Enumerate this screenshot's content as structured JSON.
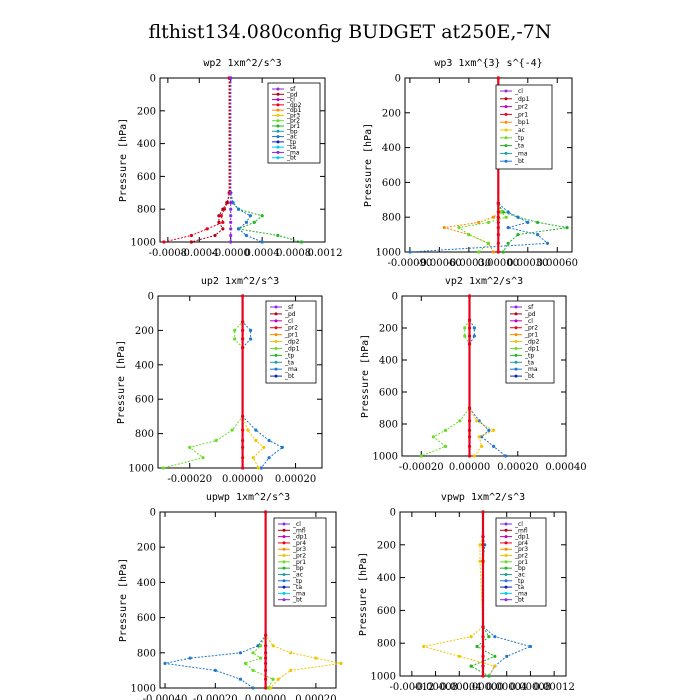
{
  "figure": {
    "title": "flthist134.080config  BUDGET at250E,-7N"
  },
  "colors": {
    "red": "#e8001c",
    "darkred": "#b40014",
    "magenta": "#c000c0",
    "purple": "#8a2be2",
    "orange": "#ff8c00",
    "yellow": "#f5c400",
    "green": "#22b422",
    "lime": "#66dd22",
    "blue": "#1f77d0",
    "navy": "#1020c0",
    "teal": "#20a0a0",
    "cyan": "#00ccee"
  },
  "chart_data": [
    {
      "type": "line",
      "title": "wp2   1xm^2/s^3",
      "ylabel": "Pressure [hPa]",
      "xlim": [
        -0.0009,
        0.0012
      ],
      "ylim": [
        1000,
        0
      ],
      "xticks": [
        "-0.0008",
        "-0.0004",
        "-0.0000",
        "0.0004",
        "0.0008",
        "0.0012"
      ],
      "xtick_values": [
        -0.0008,
        -0.0004,
        0.0,
        0.0004,
        0.0008,
        0.0012
      ],
      "yticks": [
        0,
        200,
        400,
        600,
        800,
        1000
      ],
      "legend": [
        "_sf",
        "_pd",
        "_cl",
        "_dp2",
        "_dp1",
        "_pr3",
        "_pr2",
        "_pr1",
        "_bp",
        "_ac",
        "_tp",
        "_ta",
        "_ma",
        "_bt"
      ],
      "series": [
        {
          "name": "_dp1",
          "color": "red",
          "x": [
            -2e-05,
            -2e-05,
            -4e-05,
            -8e-05,
            -0.00012,
            -0.0001,
            -0.0003,
            -0.0005,
            -0.00085
          ],
          "y": [
            0,
            700,
            760,
            800,
            840,
            880,
            920,
            960,
            1000
          ]
        },
        {
          "name": "_pr1",
          "color": "green",
          "x": [
            0,
            0,
            2e-05,
            0.0001,
            0.0004,
            0.0003,
            0.0001,
            0.0006,
            0.0009
          ],
          "y": [
            0,
            700,
            760,
            800,
            840,
            880,
            920,
            960,
            1000
          ]
        },
        {
          "name": "_tp",
          "color": "blue",
          "x": [
            0,
            0,
            3e-05,
            0.0001,
            0.00025,
            0.0002,
            0.0001,
            0.0002,
            0.0004
          ],
          "y": [
            0,
            700,
            760,
            800,
            840,
            880,
            920,
            960,
            1000
          ]
        },
        {
          "name": "_bp",
          "color": "darkred",
          "x": [
            -1e-05,
            -1e-05,
            -5e-05,
            -0.0001,
            -0.00015,
            -0.00015,
            -0.0001,
            -0.0002,
            -0.0005
          ],
          "y": [
            0,
            700,
            760,
            800,
            840,
            880,
            920,
            960,
            1000
          ]
        },
        {
          "name": "_cl",
          "color": "purple",
          "x": [
            0,
            0,
            0,
            0,
            0,
            0,
            0,
            0,
            0
          ],
          "y": [
            0,
            700,
            760,
            800,
            840,
            880,
            920,
            960,
            1000
          ]
        }
      ]
    },
    {
      "type": "line",
      "title": "wp3   1xm^{3} s^{-4}",
      "ylabel": "Pressure [hPa]",
      "xlim": [
        -0.00095,
        0.00075
      ],
      "ylim": [
        1000,
        0
      ],
      "xticks": [
        "-0.00090",
        "-0.00060",
        "-0.00030",
        "0.00000",
        "0.00030",
        "0.00060"
      ],
      "xtick_values": [
        -0.0009,
        -0.0006,
        -0.0003,
        0.0,
        0.0003,
        0.0006
      ],
      "yticks": [
        0,
        200,
        400,
        600,
        800,
        1000
      ],
      "legend": [
        "_cl",
        "_dp1",
        "_pr2",
        "_pr1",
        "_bp1",
        "_ac",
        "_tp",
        "_ta",
        "_ma",
        "_bt"
      ],
      "series": [
        {
          "name": "_pr2",
          "color": "orange",
          "x": [
            0,
            0,
            2e-05,
            -5e-05,
            -0.0002,
            -0.00055,
            -0.0003,
            -0.0001,
            -5e-05
          ],
          "y": [
            0,
            720,
            770,
            800,
            830,
            860,
            900,
            950,
            1000
          ]
        },
        {
          "name": "_pr1",
          "color": "green",
          "x": [
            0,
            0,
            5e-05,
            0.0002,
            0.0004,
            0.0007,
            0.0002,
            0.0001,
            5e-05
          ],
          "y": [
            0,
            720,
            770,
            800,
            830,
            860,
            900,
            950,
            1000
          ]
        },
        {
          "name": "_tp",
          "color": "blue",
          "x": [
            0,
            0,
            0.0001,
            0.0002,
            0.0003,
            0.0001,
            0.0004,
            0.0005,
            -0.0009
          ],
          "y": [
            0,
            720,
            770,
            800,
            830,
            860,
            900,
            950,
            1000
          ]
        },
        {
          "name": "_bp1",
          "color": "lime",
          "x": [
            0,
            0,
            3e-05,
            8e-05,
            -0.0001,
            -0.0004,
            -0.0003,
            -0.0001,
            -0.0002
          ],
          "y": [
            0,
            720,
            770,
            800,
            830,
            860,
            900,
            950,
            1000
          ]
        },
        {
          "name": "_cl",
          "color": "red",
          "x": [
            0,
            0,
            0,
            0,
            0,
            0,
            0,
            0,
            0
          ],
          "y": [
            0,
            720,
            770,
            800,
            830,
            860,
            900,
            950,
            1000
          ]
        }
      ]
    },
    {
      "type": "line",
      "title": "up2   1xm^2/s^3",
      "ylabel": "Pressure [hPa]",
      "xlim": [
        -0.00032,
        0.0003
      ],
      "ylim": [
        1000,
        0
      ],
      "xticks": [
        "-0.00020",
        "0.00000",
        "0.00020"
      ],
      "xtick_values": [
        -0.0002,
        0.0,
        0.0002
      ],
      "yticks": [
        0,
        200,
        400,
        600,
        800,
        1000
      ],
      "legend": [
        "_sf",
        "_pd",
        "_cl",
        "_pr2",
        "_pr1",
        "_dp2",
        "_dp1",
        "_tp",
        "_ta",
        "_ma",
        "_bt"
      ],
      "series": [
        {
          "name": "_tp",
          "color": "blue",
          "x": [
            0,
            0,
            3e-05,
            3e-05,
            0,
            0,
            5e-05,
            0.0001,
            0.00015,
            0.0001,
            7e-05
          ],
          "y": [
            0,
            150,
            200,
            250,
            300,
            700,
            780,
            840,
            880,
            940,
            1000
          ]
        },
        {
          "name": "_dp1",
          "color": "lime",
          "x": [
            0,
            0,
            -3e-05,
            -3e-05,
            0,
            0,
            -4e-05,
            -0.0001,
            -0.0002,
            -0.00015,
            -0.0003
          ],
          "y": [
            0,
            150,
            200,
            250,
            300,
            700,
            780,
            840,
            880,
            940,
            1000
          ]
        },
        {
          "name": "_pr1",
          "color": "yellow",
          "x": [
            0,
            0,
            0,
            0,
            0,
            0,
            2e-05,
            5e-05,
            8e-05,
            4e-05,
            6e-05
          ],
          "y": [
            0,
            150,
            200,
            250,
            300,
            700,
            780,
            840,
            880,
            940,
            1000
          ]
        },
        {
          "name": "_cl",
          "color": "red",
          "x": [
            0,
            0,
            0,
            0,
            0,
            0,
            0,
            0,
            0,
            0,
            0
          ],
          "y": [
            0,
            150,
            200,
            250,
            300,
            700,
            780,
            840,
            880,
            940,
            1000
          ]
        }
      ]
    },
    {
      "type": "line",
      "title": "vp2   1xm^2/s^3",
      "ylabel": "Pressure [hPa]",
      "xlim": [
        -0.00028,
        0.0004
      ],
      "ylim": [
        1000,
        0
      ],
      "xticks": [
        "-0.00020",
        "0.00000",
        "0.00020",
        "0.00040"
      ],
      "xtick_values": [
        -0.0002,
        0.0,
        0.0002,
        0.0004
      ],
      "yticks": [
        0,
        200,
        400,
        600,
        800,
        1000
      ],
      "legend": [
        "_sf",
        "_pd",
        "_cl",
        "_pr2",
        "_pr1",
        "_dp2",
        "_dp1",
        "_tp",
        "_ta",
        "_ma",
        "_bt"
      ],
      "series": [
        {
          "name": "_tp",
          "color": "blue",
          "x": [
            0,
            0,
            2e-05,
            2e-05,
            0,
            0,
            4e-05,
            8e-05,
            5e-05,
            0.0001,
            0.00015
          ],
          "y": [
            0,
            150,
            200,
            250,
            300,
            700,
            780,
            840,
            880,
            940,
            1000
          ]
        },
        {
          "name": "_dp1",
          "color": "lime",
          "x": [
            0,
            0,
            -2e-05,
            -2e-05,
            0,
            0,
            -4e-05,
            -0.0001,
            -0.00015,
            -0.0001,
            -0.0002
          ],
          "y": [
            0,
            150,
            200,
            250,
            300,
            700,
            780,
            840,
            880,
            940,
            1000
          ]
        },
        {
          "name": "_pr1",
          "color": "yellow",
          "x": [
            0,
            0,
            0,
            0,
            0,
            0,
            3e-05,
            0.0001,
            4e-05,
            5e-05,
            2e-05
          ],
          "y": [
            0,
            150,
            200,
            250,
            300,
            700,
            780,
            840,
            880,
            940,
            1000
          ]
        },
        {
          "name": "_cl",
          "color": "red",
          "x": [
            0,
            0,
            0,
            0,
            0,
            0,
            0,
            0,
            0,
            0,
            0
          ],
          "y": [
            0,
            150,
            200,
            250,
            300,
            700,
            780,
            840,
            880,
            940,
            1000
          ]
        }
      ]
    },
    {
      "type": "line",
      "title": "upwp   1xm^2/s^3",
      "ylabel": "Pressure [hPa]",
      "xlim": [
        -0.00042,
        0.00028
      ],
      "ylim": [
        1000,
        0
      ],
      "xticks": [
        "-0.00040",
        "-0.00020",
        "0.00000",
        "0.00020"
      ],
      "xtick_values": [
        -0.0004,
        -0.0002,
        0.0,
        0.0002
      ],
      "yticks": [
        0,
        200,
        400,
        600,
        800,
        1000
      ],
      "legend": [
        "_cl",
        "_mfl",
        "_dp1",
        "_pr4",
        "_pr3",
        "_pr2",
        "_pr1",
        "_bp",
        "_ac",
        "_tp",
        "_ta",
        "_ma",
        "_bt"
      ],
      "series": [
        {
          "name": "_tp",
          "color": "blue",
          "x": [
            0,
            0,
            -3e-05,
            -0.0001,
            -0.0003,
            -0.0004,
            -0.0002,
            -0.0001,
            -5e-05
          ],
          "y": [
            0,
            700,
            760,
            800,
            830,
            860,
            900,
            950,
            1000
          ]
        },
        {
          "name": "_pr2",
          "color": "yellow",
          "x": [
            0,
            0,
            3e-05,
            0.0001,
            0.0002,
            0.0003,
            0.0001,
            5e-05,
            2e-05
          ],
          "y": [
            0,
            700,
            760,
            800,
            830,
            860,
            900,
            950,
            1000
          ]
        },
        {
          "name": "_pr1",
          "color": "lime",
          "x": [
            0,
            0,
            -2e-05,
            -5e-05,
            -2e-05,
            -8e-05,
            -5e-05,
            3e-05,
            1e-05
          ],
          "y": [
            0,
            700,
            760,
            800,
            830,
            860,
            900,
            950,
            1000
          ]
        },
        {
          "name": "_cl",
          "color": "red",
          "x": [
            0,
            0,
            0,
            0,
            0,
            0,
            0,
            0,
            0
          ],
          "y": [
            0,
            700,
            760,
            800,
            830,
            860,
            900,
            950,
            1000
          ]
        }
      ]
    },
    {
      "type": "line",
      "title": "vpwp   1xm^2/s^3",
      "ylabel": "Pressure [hPa]",
      "xlim": [
        -0.00014,
        0.00014
      ],
      "ylim": [
        1000,
        0
      ],
      "xticks": [
        "-0.00012",
        "-0.00008",
        "-0.00004",
        "0.00000",
        "0.00004",
        "0.00008",
        "0.00012"
      ],
      "xtick_values": [
        -0.00012,
        -8e-05,
        -4e-05,
        0.0,
        4e-05,
        8e-05,
        0.00012
      ],
      "yticks": [
        0,
        200,
        400,
        600,
        800,
        1000
      ],
      "legend": [
        "_cl",
        "_mfl",
        "_dp1",
        "_pr4",
        "_pr3",
        "_pr2",
        "_pr1",
        "_bp",
        "_ac",
        "_tp",
        "_ta",
        "_ma",
        "_bt"
      ],
      "series": [
        {
          "name": "_tp",
          "color": "blue",
          "x": [
            0,
            0,
            3e-06,
            0,
            0,
            2e-05,
            8e-05,
            4e-05,
            2e-05,
            1e-05
          ],
          "y": [
            0,
            150,
            200,
            300,
            700,
            760,
            820,
            880,
            940,
            1000
          ]
        },
        {
          "name": "_pr2",
          "color": "yellow",
          "x": [
            0,
            0,
            -5e-06,
            -5e-06,
            0,
            -2e-05,
            -0.0001,
            -4e-05,
            2e-05,
            1e-05
          ],
          "y": [
            0,
            150,
            200,
            300,
            700,
            760,
            820,
            880,
            940,
            1000
          ]
        },
        {
          "name": "_pr1",
          "color": "green",
          "x": [
            0,
            0,
            0,
            0,
            0,
            1e-05,
            -1e-05,
            2e-05,
            -2e-05,
            1e-05
          ],
          "y": [
            0,
            150,
            200,
            300,
            700,
            760,
            820,
            880,
            940,
            1000
          ]
        },
        {
          "name": "_cl",
          "color": "red",
          "x": [
            0,
            0,
            0,
            0,
            0,
            0,
            0,
            0,
            0,
            0
          ],
          "y": [
            0,
            150,
            200,
            300,
            700,
            760,
            820,
            880,
            940,
            1000
          ]
        }
      ]
    }
  ]
}
